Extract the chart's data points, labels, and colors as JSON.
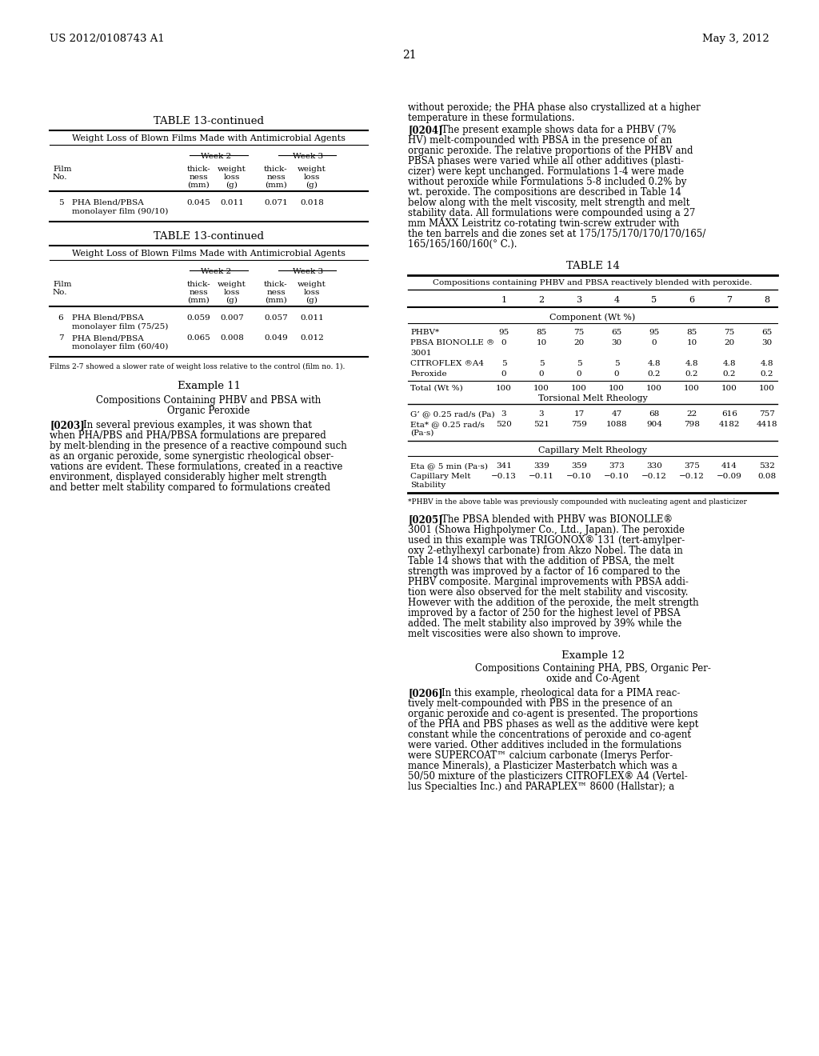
{
  "header_left": "US 2012/0108743 A1",
  "header_right": "May 3, 2012",
  "page_number": "21",
  "background_color": "#ffffff"
}
